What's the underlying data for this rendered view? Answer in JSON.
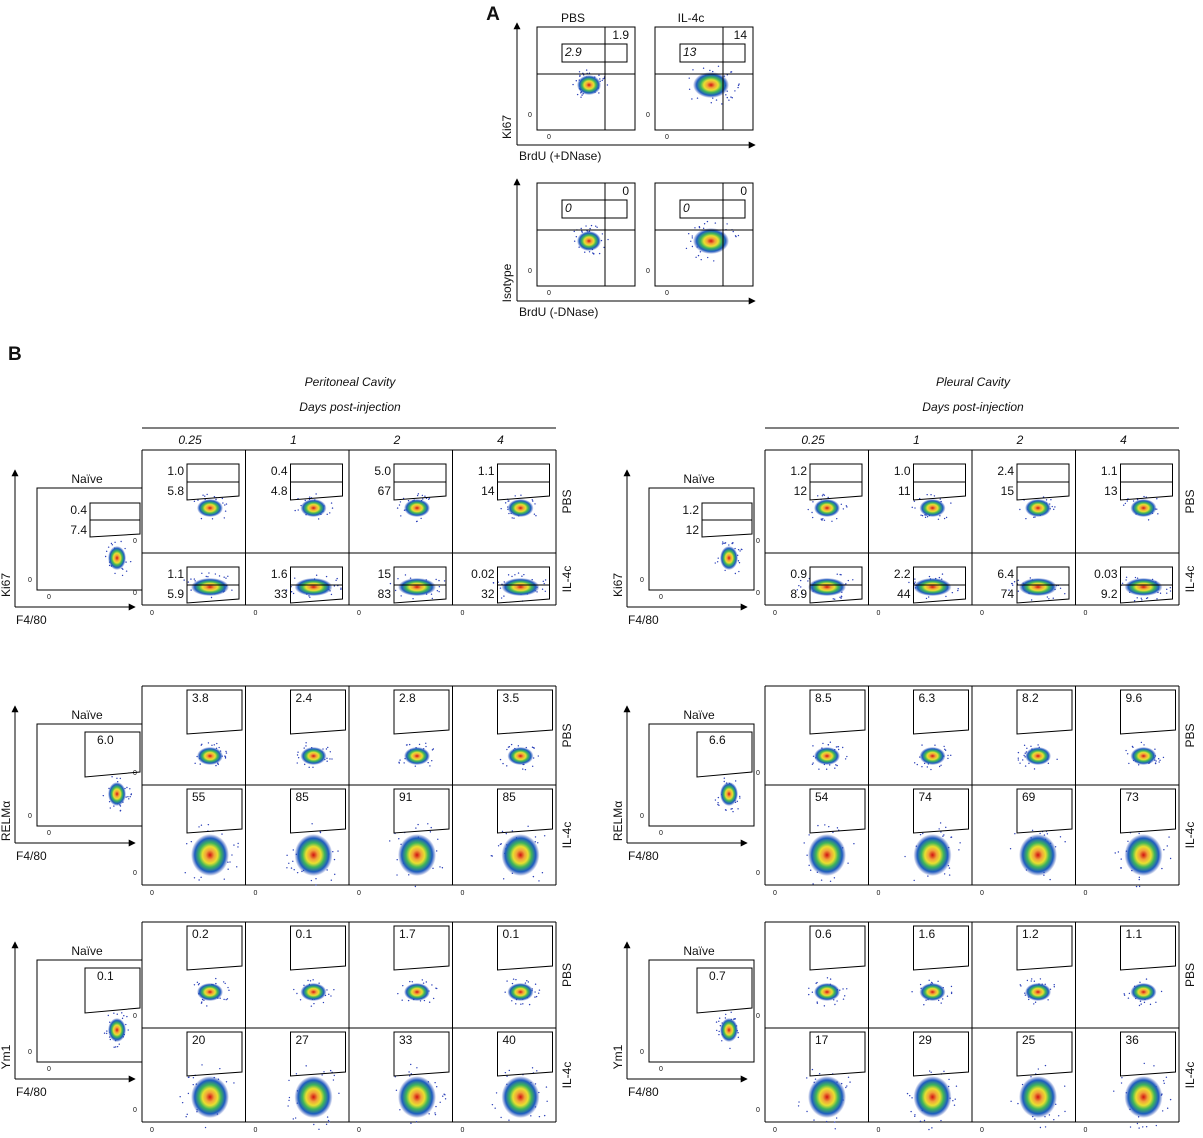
{
  "panel_a": {
    "label": "A",
    "axis_zero": "0",
    "rows": [
      {
        "y_label": "Ki67",
        "x_label": "BrdU (+DNase)",
        "plots": [
          {
            "title": "PBS",
            "quadrant": "1.9",
            "gate": "2.9"
          },
          {
            "title": "IL-4c",
            "quadrant": "14",
            "gate": "13"
          }
        ]
      },
      {
        "y_label": "Isotype",
        "x_label": "BrdU (-DNase)",
        "plots": [
          {
            "quadrant": "0",
            "gate": "0"
          },
          {
            "quadrant": "0",
            "gate": "0"
          }
        ]
      }
    ]
  },
  "panel_b": {
    "label": "B",
    "axis_zero": "0",
    "x_label": "F4/80",
    "naive_label": "Naïve",
    "treatments": [
      "PBS",
      "IL-4c"
    ],
    "cavities": [
      {
        "title": "Peritoneal Cavity",
        "subtitle": "Days post-injection",
        "days": [
          "0.25",
          "1",
          "2",
          "4"
        ],
        "markers": [
          {
            "y_label": "Ki67",
            "naive": [
              "0.4",
              "7.4"
            ],
            "rows": [
              [
                [
                  "1.0",
                  "5.8"
                ],
                [
                  "0.4",
                  "4.8"
                ],
                [
                  "5.0",
                  "67"
                ],
                [
                  "1.1",
                  "14"
                ]
              ],
              [
                [
                  "1.1",
                  "5.9"
                ],
                [
                  "1.6",
                  "33"
                ],
                [
                  "15",
                  "83"
                ],
                [
                  "0.02",
                  "32"
                ]
              ]
            ]
          },
          {
            "y_label": "RELMα",
            "naive": [
              "6.0"
            ],
            "rows": [
              [
                [
                  "3.8"
                ],
                [
                  "2.4"
                ],
                [
                  "2.8"
                ],
                [
                  "3.5"
                ]
              ],
              [
                [
                  "55"
                ],
                [
                  "85"
                ],
                [
                  "91"
                ],
                [
                  "85"
                ]
              ]
            ]
          },
          {
            "y_label": "Ym1",
            "naive": [
              "0.1"
            ],
            "rows": [
              [
                [
                  "0.2"
                ],
                [
                  "0.1"
                ],
                [
                  "1.7"
                ],
                [
                  "0.1"
                ]
              ],
              [
                [
                  "20"
                ],
                [
                  "27"
                ],
                [
                  "33"
                ],
                [
                  "40"
                ]
              ]
            ]
          }
        ]
      },
      {
        "title": "Pleural Cavity",
        "subtitle": "Days post-injection",
        "days": [
          "0.25",
          "1",
          "2",
          "4"
        ],
        "markers": [
          {
            "y_label": "Ki67",
            "naive": [
              "1.2",
              "12"
            ],
            "rows": [
              [
                [
                  "1.2",
                  "12"
                ],
                [
                  "1.0",
                  "11"
                ],
                [
                  "2.4",
                  "15"
                ],
                [
                  "1.1",
                  "13"
                ]
              ],
              [
                [
                  "0.9",
                  "8.9"
                ],
                [
                  "2.2",
                  "44"
                ],
                [
                  "6.4",
                  "74"
                ],
                [
                  "0.03",
                  "9.2"
                ]
              ]
            ]
          },
          {
            "y_label": "RELMα",
            "naive": [
              "6.6"
            ],
            "rows": [
              [
                [
                  "8.5"
                ],
                [
                  "6.3"
                ],
                [
                  "8.2"
                ],
                [
                  "9.6"
                ]
              ],
              [
                [
                  "54"
                ],
                [
                  "74"
                ],
                [
                  "69"
                ],
                [
                  "73"
                ]
              ]
            ]
          },
          {
            "y_label": "Ym1",
            "naive": [
              "0.7"
            ],
            "rows": [
              [
                [
                  "0.6"
                ],
                [
                  "1.6"
                ],
                [
                  "1.2"
                ],
                [
                  "1.1"
                ]
              ],
              [
                [
                  "17"
                ],
                [
                  "29"
                ],
                [
                  "25"
                ],
                [
                  "36"
                ]
              ]
            ]
          }
        ]
      }
    ]
  }
}
